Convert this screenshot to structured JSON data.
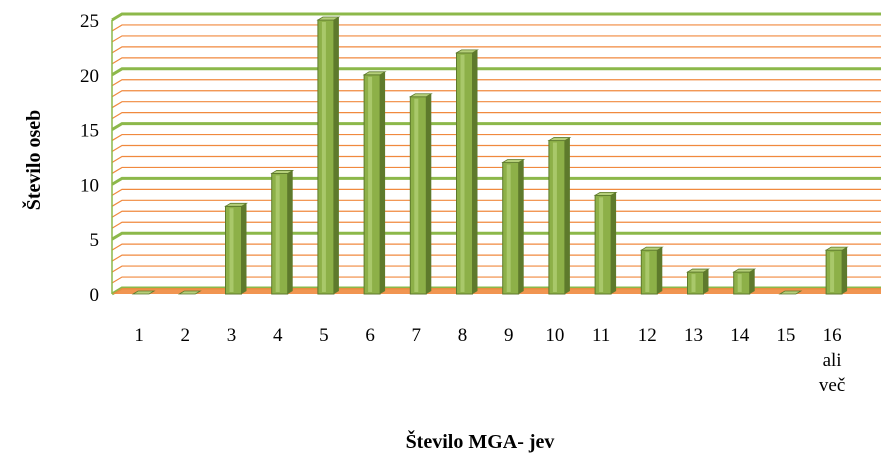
{
  "chart_data": {
    "type": "bar",
    "categories": [
      "1",
      "2",
      "3",
      "4",
      "5",
      "6",
      "7",
      "8",
      "9",
      "10",
      "11",
      "12",
      "13",
      "14",
      "15",
      "16 ali več"
    ],
    "category_lines": [
      [
        "1"
      ],
      [
        "2"
      ],
      [
        "3"
      ],
      [
        "4"
      ],
      [
        "5"
      ],
      [
        "6"
      ],
      [
        "7"
      ],
      [
        "8"
      ],
      [
        "9"
      ],
      [
        "10"
      ],
      [
        "11"
      ],
      [
        "12"
      ],
      [
        "13"
      ],
      [
        "14"
      ],
      [
        "15"
      ],
      [
        "16",
        "ali",
        "več"
      ]
    ],
    "values": [
      0,
      0,
      8,
      11,
      25,
      20,
      18,
      22,
      12,
      14,
      9,
      4,
      2,
      2,
      0,
      4
    ],
    "xlabel": "Število MGA- jev",
    "ylabel": "Število oseb",
    "ylim": [
      0,
      25
    ],
    "yticks": [
      "0",
      "5",
      "10",
      "15",
      "20",
      "25"
    ],
    "grid": true,
    "legend": "none",
    "colors": {
      "bar_front": "#8DB048",
      "bar_side": "#5E7A2C",
      "bar_top": "#B5CF7A",
      "major_grid": "#8CB84A",
      "minor_grid": "#F0893E",
      "floor": "#F0893E"
    }
  }
}
